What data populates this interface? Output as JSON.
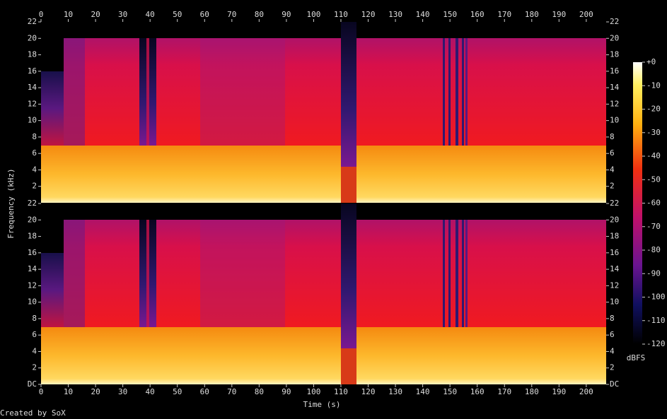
{
  "chart_data": {
    "type": "spectrogram",
    "xlabel": "Time (s)",
    "ylabel": "Frequency (kHz)",
    "footer": "Created by SoX",
    "xlim": [
      0,
      207.3
    ],
    "xticks": [
      0,
      10,
      20,
      30,
      40,
      50,
      60,
      70,
      80,
      90,
      100,
      110,
      120,
      130,
      140,
      150,
      160,
      170,
      180,
      190,
      200
    ],
    "channels": [
      {
        "ylim": [
          0,
          22
        ],
        "yticks": [
          2,
          4,
          6,
          8,
          10,
          12,
          14,
          16,
          18,
          20,
          22
        ]
      },
      {
        "ylim": [
          0,
          22
        ],
        "yticks": [
          {
            "value": 0,
            "label": "DC"
          },
          2,
          4,
          6,
          8,
          10,
          12,
          14,
          16,
          18,
          20,
          22
        ]
      }
    ],
    "colorbar": {
      "label": "dBFS",
      "ylim": [
        -120,
        0
      ],
      "ticks": [
        {
          "value": 0,
          "label": "+0"
        },
        -10,
        -20,
        -30,
        -40,
        -50,
        -60,
        -70,
        -80,
        -90,
        -100,
        -110,
        -120
      ]
    }
  }
}
